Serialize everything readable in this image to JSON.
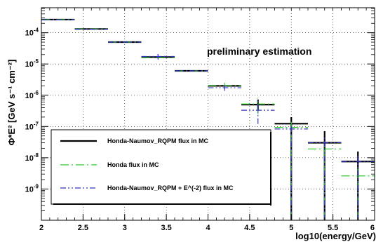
{
  "chart_data": {
    "type": "scatter",
    "title": "",
    "xlabel": "log10(energy/GeV)",
    "ylabel": "Φ*E² [GeV s⁻¹ cm⁻²]",
    "xlim": [
      2,
      6
    ],
    "ylim_log10": [
      -10,
      -3.2
    ],
    "y_scale": "log",
    "grid": true,
    "x_ticks": [
      2,
      2.5,
      3,
      3.5,
      4,
      4.5,
      5,
      5.5,
      6
    ],
    "x_tick_labels": [
      "2",
      "2.5",
      "3",
      "3.5",
      "4",
      "4.5",
      "5",
      "5.5",
      "6"
    ],
    "y_ticks_log10": [
      -4,
      -5,
      -6,
      -7,
      -8,
      -9
    ],
    "annotation": "preliminary estimation",
    "legend_position": "lower-left",
    "series": [
      {
        "name": "Honda-Naumov_RQPM flux in MC",
        "color": "#000000",
        "style": "solid",
        "points": [
          {
            "x": 2.2,
            "xlow": 2.0,
            "xhigh": 2.4,
            "log10y": -3.58
          },
          {
            "x": 2.6,
            "xlow": 2.4,
            "xhigh": 2.8,
            "log10y": -3.88
          },
          {
            "x": 3.0,
            "xlow": 2.8,
            "xhigh": 3.2,
            "log10y": -4.3
          },
          {
            "x": 3.4,
            "xlow": 3.2,
            "xhigh": 3.6,
            "log10y": -4.78
          },
          {
            "x": 3.8,
            "xlow": 3.6,
            "xhigh": 4.0,
            "log10y": -5.22
          },
          {
            "x": 4.2,
            "xlow": 4.0,
            "xhigh": 4.4,
            "log10y": -5.7
          },
          {
            "x": 4.6,
            "xlow": 4.4,
            "xhigh": 4.8,
            "log10y": -6.3,
            "elow": -6.5,
            "ehigh": -6.14
          },
          {
            "x": 5.0,
            "xlow": 4.8,
            "xhigh": 5.2,
            "log10y": -6.91,
            "elow": -10.0,
            "ehigh": -6.7
          },
          {
            "x": 5.4,
            "xlow": 5.2,
            "xhigh": 5.6,
            "log10y": -7.52,
            "elow": -10.0,
            "ehigh": -7.15
          },
          {
            "x": 5.8,
            "xlow": 5.6,
            "xhigh": 6.0,
            "log10y": -8.12,
            "elow": -10.0,
            "ehigh": -7.8
          }
        ]
      },
      {
        "name": "Honda flux in MC",
        "color": "#33cc33",
        "style": "dashdot",
        "points": [
          {
            "x": 2.2,
            "xlow": 2.0,
            "xhigh": 2.4,
            "log10y": -3.58
          },
          {
            "x": 2.6,
            "xlow": 2.4,
            "xhigh": 2.8,
            "log10y": -3.88
          },
          {
            "x": 3.0,
            "xlow": 2.8,
            "xhigh": 3.2,
            "log10y": -4.3
          },
          {
            "x": 3.4,
            "xlow": 3.2,
            "xhigh": 3.6,
            "log10y": -4.8
          },
          {
            "x": 3.8,
            "xlow": 3.6,
            "xhigh": 4.0,
            "log10y": -5.22
          },
          {
            "x": 4.2,
            "xlow": 4.0,
            "xhigh": 4.4,
            "log10y": -5.7,
            "elow": -5.8,
            "ehigh": -5.6
          },
          {
            "x": 4.6,
            "xlow": 4.4,
            "xhigh": 4.8,
            "log10y": -6.28,
            "elow": -6.6,
            "ehigh": -6.08
          },
          {
            "x": 5.0,
            "xlow": 4.8,
            "xhigh": 5.2,
            "log10y": -7.03,
            "elow": -10.0,
            "ehigh": -6.85
          },
          {
            "x": 5.4,
            "xlow": 5.2,
            "xhigh": 5.6,
            "log10y": -7.72,
            "elow": -10.0,
            "ehigh": -7.55
          },
          {
            "x": 5.8,
            "xlow": 5.6,
            "xhigh": 6.0,
            "log10y": -8.58,
            "elow": -10.0,
            "ehigh": -8.35
          }
        ]
      },
      {
        "name": "Honda-Naumov_RQPM + E^(-2) flux in MC",
        "color": "#3333cc",
        "style": "dashdotdot",
        "points": [
          {
            "x": 2.2,
            "xlow": 2.0,
            "xhigh": 2.4,
            "log10y": -3.59
          },
          {
            "x": 2.6,
            "xlow": 2.4,
            "xhigh": 2.8,
            "log10y": -3.89
          },
          {
            "x": 3.0,
            "xlow": 2.8,
            "xhigh": 3.2,
            "log10y": -4.3
          },
          {
            "x": 3.4,
            "xlow": 3.2,
            "xhigh": 3.6,
            "log10y": -4.76,
            "elow": -4.86,
            "ehigh": -4.68
          },
          {
            "x": 3.8,
            "xlow": 3.6,
            "xhigh": 4.0,
            "log10y": -5.22
          },
          {
            "x": 4.2,
            "xlow": 4.0,
            "xhigh": 4.4,
            "log10y": -5.76,
            "elow": -5.86,
            "ehigh": -5.64
          },
          {
            "x": 4.6,
            "xlow": 4.4,
            "xhigh": 4.8,
            "log10y": -6.48,
            "elow": -6.92,
            "ehigh": -6.16
          },
          {
            "x": 5.0,
            "xlow": 4.8,
            "xhigh": 5.2,
            "log10y": -7.08,
            "elow": -10.0,
            "ehigh": -6.95
          },
          {
            "x": 5.4,
            "xlow": 5.2,
            "xhigh": 5.6,
            "log10y": -7.52,
            "elow": -10.0,
            "ehigh": -7.3
          },
          {
            "x": 5.8,
            "xlow": 5.6,
            "xhigh": 6.0,
            "log10y": -8.12,
            "elow": -10.0,
            "ehigh": -7.95
          }
        ]
      }
    ]
  }
}
